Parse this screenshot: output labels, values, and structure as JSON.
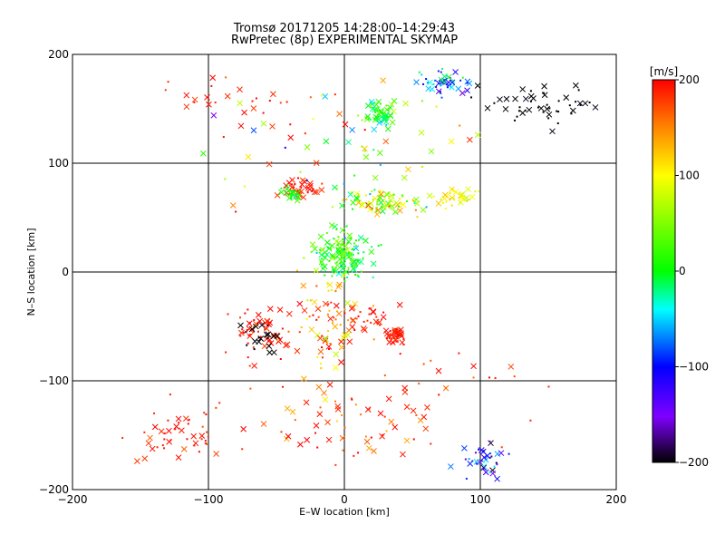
{
  "chart_data": {
    "type": "scatter",
    "title": "Tromsø 20171205 14:28:00–14:29:43",
    "subtitle": "RwPretec (8p) EXPERIMENTAL SKYMAP",
    "xlabel": "E–W location [km]",
    "ylabel": "N–S location [km]",
    "xlim": [
      -200,
      200
    ],
    "ylim": [
      -200,
      200
    ],
    "xticks": [
      -200,
      -100,
      0,
      100,
      200
    ],
    "yticks": [
      -200,
      -100,
      0,
      100,
      200
    ],
    "xtick_labels": [
      "−200",
      "−100",
      "0",
      "100",
      "200"
    ],
    "ytick_labels": [
      "−200",
      "−100",
      "0",
      "100",
      "200"
    ],
    "grid": true,
    "colorbar": {
      "label": "[m/s]",
      "range": [
        -200,
        200
      ],
      "ticks": [
        -200,
        -100,
        0,
        100,
        200
      ],
      "tick_labels": [
        "−200",
        "−100",
        "0",
        "100",
        "200"
      ],
      "colors": [
        "#000000",
        "#7f00ff",
        "#0000ff",
        "#00ffff",
        "#00ff00",
        "#ffff00",
        "#ff8000",
        "#ff0000"
      ]
    },
    "markers": {
      "cross": "velocity point (cross)",
      "dot": "velocity point (dot)"
    },
    "clusters": [
      {
        "x": 25,
        "y": 145,
        "sx": 10,
        "sy": 10,
        "n": 60,
        "v": 10,
        "vs": 50
      },
      {
        "x": 75,
        "y": 172,
        "sx": 18,
        "sy": 12,
        "n": 50,
        "v": -60,
        "vs": 80
      },
      {
        "x": 140,
        "y": 155,
        "sx": 35,
        "sy": 15,
        "n": 50,
        "v": -200,
        "vs": 5
      },
      {
        "x": -30,
        "y": 78,
        "sx": 12,
        "sy": 8,
        "n": 40,
        "v": 190,
        "vs": 20
      },
      {
        "x": -40,
        "y": 70,
        "sx": 8,
        "sy": 6,
        "n": 25,
        "v": 10,
        "vs": 30
      },
      {
        "x": 30,
        "y": 65,
        "sx": 30,
        "sy": 10,
        "n": 90,
        "v": 60,
        "vs": 90
      },
      {
        "x": 85,
        "y": 68,
        "sx": 15,
        "sy": 8,
        "n": 30,
        "v": 100,
        "vs": 30
      },
      {
        "x": 0,
        "y": 15,
        "sx": 18,
        "sy": 18,
        "n": 150,
        "v": 10,
        "vs": 50
      },
      {
        "x": -60,
        "y": -55,
        "sx": 18,
        "sy": 20,
        "n": 60,
        "v": 190,
        "vs": 20
      },
      {
        "x": -60,
        "y": -60,
        "sx": 12,
        "sy": 12,
        "n": 20,
        "v": -200,
        "vs": 5
      },
      {
        "x": 38,
        "y": -58,
        "sx": 7,
        "sy": 6,
        "n": 40,
        "v": 190,
        "vs": 15
      },
      {
        "x": 20,
        "y": -45,
        "sx": 12,
        "sy": 10,
        "n": 25,
        "v": 190,
        "vs": 15
      },
      {
        "x": -10,
        "y": -40,
        "sx": 25,
        "sy": 40,
        "n": 80,
        "v": 150,
        "vs": 80
      },
      {
        "x": -120,
        "y": -150,
        "sx": 35,
        "sy": 25,
        "n": 50,
        "v": 190,
        "vs": 20
      },
      {
        "x": 105,
        "y": -175,
        "sx": 15,
        "sy": 12,
        "n": 40,
        "v": -120,
        "vs": 80
      },
      {
        "x": 0,
        "y": -140,
        "sx": 60,
        "sy": 30,
        "n": 50,
        "v": 170,
        "vs": 40
      },
      {
        "x": -70,
        "y": 150,
        "sx": 50,
        "sy": 30,
        "n": 30,
        "v": 190,
        "vs": 20
      },
      {
        "x": 0,
        "y": 120,
        "sx": 80,
        "sy": 50,
        "n": 60,
        "v": 50,
        "vs": 150
      },
      {
        "x": 60,
        "y": -110,
        "sx": 70,
        "sy": 50,
        "n": 40,
        "v": 190,
        "vs": 30
      }
    ]
  }
}
